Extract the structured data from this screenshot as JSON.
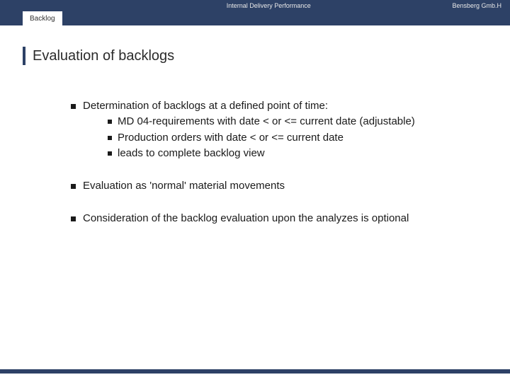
{
  "header": {
    "center": "Internal Delivery Performance",
    "right": "Bensberg Gmb.H"
  },
  "tab": {
    "label": "Backlog"
  },
  "title": "Evaluation of backlogs",
  "points": [
    {
      "text": "Determination of backlogs at a defined point of time:",
      "sub": [
        "MD 04-requirements with date < or <= current date (adjustable)",
        "Production orders with date < or <= current date",
        "leads to complete backlog view"
      ]
    },
    {
      "text": "Evaluation as 'normal' material movements",
      "sub": []
    },
    {
      "text": "Consideration of the backlog evaluation upon the analyzes is optional",
      "sub": []
    }
  ],
  "colors": {
    "bar": "#2d4166",
    "text": "#1a1a1a",
    "bg": "#ffffff"
  }
}
